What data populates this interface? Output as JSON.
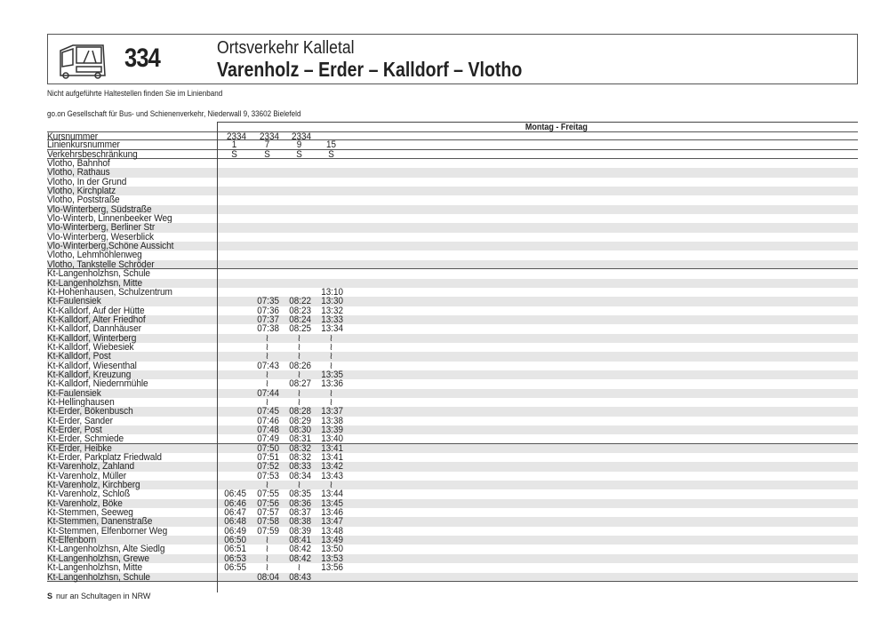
{
  "header": {
    "line_number": "334",
    "subtitle": "Ortsverkehr Kalletal",
    "title": "Varenholz – Erder – Kalldorf – Vlotho",
    "icon": "bus-icon"
  },
  "notes": {
    "stops_hint": "Nicht aufgeführte Haltestellen finden Sie im Linienband",
    "operator": "go.on Gesellschaft für Bus- und Schienenverkehr, Niederwall 9, 33602 Bielefeld"
  },
  "table": {
    "day_label": "Montag - Freitag",
    "skip_symbol": "≀",
    "header_rows": [
      {
        "label": "Kursnummer",
        "values": [
          "2334",
          "2334",
          "2334",
          ""
        ]
      },
      {
        "label": "Linienkursnummer",
        "values": [
          "1",
          "7",
          "9",
          "15"
        ]
      },
      {
        "label": "Verkehrsbeschränkung",
        "values": [
          "S",
          "S",
          "S",
          "S"
        ]
      }
    ],
    "stops": [
      {
        "name": "Vlotho, Bahnhof",
        "times": [
          "",
          "",
          "",
          ""
        ]
      },
      {
        "name": "Vlotho, Rathaus",
        "times": [
          "",
          "",
          "",
          ""
        ]
      },
      {
        "name": "Vlotho, In der Grund",
        "times": [
          "",
          "",
          "",
          ""
        ]
      },
      {
        "name": "Vlotho, Kirchplatz",
        "times": [
          "",
          "",
          "",
          ""
        ]
      },
      {
        "name": "Vlotho, Poststraße",
        "times": [
          "",
          "",
          "",
          ""
        ]
      },
      {
        "name": "Vlo-Winterberg, Südstraße",
        "times": [
          "",
          "",
          "",
          ""
        ]
      },
      {
        "name": "Vlo-Winterb, Linnenbeeker Weg",
        "times": [
          "",
          "",
          "",
          ""
        ]
      },
      {
        "name": "Vlo-Winterberg, Berliner Str",
        "times": [
          "",
          "",
          "",
          ""
        ]
      },
      {
        "name": "Vlo-Winterberg, Weserblick",
        "times": [
          "",
          "",
          "",
          ""
        ]
      },
      {
        "name": "Vlo-Winterberg,Schöne Aussicht",
        "times": [
          "",
          "",
          "",
          ""
        ]
      },
      {
        "name": "Vlotho, Lehmhöhlenweg",
        "times": [
          "",
          "",
          "",
          ""
        ]
      },
      {
        "name": "Vlotho, Tankstelle Schröder",
        "times": [
          "",
          "",
          "",
          ""
        ]
      },
      {
        "name": "Kt-Langenholzhsn, Schule",
        "times": [
          "",
          "",
          "",
          ""
        ]
      },
      {
        "name": "Kt-Langenholzhsn, Mitte",
        "times": [
          "",
          "",
          "",
          ""
        ]
      },
      {
        "name": "Kt-Hohenhausen, Schulzentrum",
        "times": [
          "",
          "",
          "",
          "13:10"
        ]
      },
      {
        "name": "Kt-Faulensiek",
        "times": [
          "",
          "07:35",
          "08:22",
          "13:30"
        ]
      },
      {
        "name": "Kt-Kalldorf, Auf der Hütte",
        "times": [
          "",
          "07:36",
          "08:23",
          "13:32"
        ]
      },
      {
        "name": "Kt-Kalldorf, Alter Friedhof",
        "times": [
          "",
          "07:37",
          "08:24",
          "13:33"
        ]
      },
      {
        "name": "Kt-Kalldorf, Dannhäuser",
        "times": [
          "",
          "07:38",
          "08:25",
          "13:34"
        ]
      },
      {
        "name": "Kt-Kalldorf, Winterberg",
        "times": [
          "",
          "≀",
          "≀",
          "≀"
        ]
      },
      {
        "name": "Kt-Kalldorf, Wiebesiek",
        "times": [
          "",
          "≀",
          "≀",
          "≀"
        ]
      },
      {
        "name": "Kt-Kalldorf, Post",
        "times": [
          "",
          "≀",
          "≀",
          "≀"
        ]
      },
      {
        "name": "Kt-Kalldorf, Wiesenthal",
        "times": [
          "",
          "07:43",
          "08:26",
          "≀"
        ]
      },
      {
        "name": "Kt-Kalldorf, Kreuzung",
        "times": [
          "",
          "≀",
          "≀",
          "13:35"
        ]
      },
      {
        "name": "Kt-Kalldorf, Niedernmühle",
        "times": [
          "",
          "≀",
          "08:27",
          "13:36"
        ]
      },
      {
        "name": "Kt-Faulensiek",
        "times": [
          "",
          "07:44",
          "≀",
          "≀"
        ]
      },
      {
        "name": "Kt-Hellinghausen",
        "times": [
          "",
          "≀",
          "≀",
          "≀"
        ]
      },
      {
        "name": "Kt-Erder, Bökenbusch",
        "times": [
          "",
          "07:45",
          "08:28",
          "13:37"
        ]
      },
      {
        "name": "Kt-Erder, Sander",
        "times": [
          "",
          "07:46",
          "08:29",
          "13:38"
        ]
      },
      {
        "name": "Kt-Erder, Post",
        "times": [
          "",
          "07:48",
          "08:30",
          "13:39"
        ]
      },
      {
        "name": "Kt-Erder, Schmiede",
        "times": [
          "",
          "07:49",
          "08:31",
          "13:40"
        ]
      },
      {
        "name": "Kt-Erder, Heibke",
        "times": [
          "",
          "07:50",
          "08:32",
          "13:41"
        ]
      },
      {
        "name": "Kt-Erder, Parkplatz Friedwald",
        "times": [
          "",
          "07:51",
          "08:32",
          "13:41"
        ]
      },
      {
        "name": "Kt-Varenholz, Zahland",
        "times": [
          "",
          "07:52",
          "08:33",
          "13:42"
        ]
      },
      {
        "name": "Kt-Varenholz, Müller",
        "times": [
          "",
          "07:53",
          "08:34",
          "13:43"
        ]
      },
      {
        "name": "Kt-Varenholz, Kirchberg",
        "times": [
          "",
          "≀",
          "≀",
          "≀"
        ]
      },
      {
        "name": "Kt-Varenholz, Schloß",
        "times": [
          "06:45",
          "07:55",
          "08:35",
          "13:44"
        ]
      },
      {
        "name": "Kt-Varenholz, Böke",
        "times": [
          "06:46",
          "07:56",
          "08:36",
          "13:45"
        ]
      },
      {
        "name": "Kt-Stemmen, Seeweg",
        "times": [
          "06:47",
          "07:57",
          "08:37",
          "13:46"
        ]
      },
      {
        "name": "Kt-Stemmen, Danenstraße",
        "times": [
          "06:48",
          "07:58",
          "08:38",
          "13:47"
        ]
      },
      {
        "name": "Kt-Stemmen, Elfenborner Weg",
        "times": [
          "06:49",
          "07:59",
          "08:39",
          "13:48"
        ]
      },
      {
        "name": "Kt-Elfenborn",
        "times": [
          "06:50",
          "≀",
          "08:41",
          "13:49"
        ]
      },
      {
        "name": "Kt-Langenholzhsn, Alte Siedlg",
        "times": [
          "06:51",
          "≀",
          "08:42",
          "13:50"
        ]
      },
      {
        "name": "Kt-Langenholzhsn, Grewe",
        "times": [
          "06:53",
          "≀",
          "08:42",
          "13:53"
        ]
      },
      {
        "name": "Kt-Langenholzhsn, Mitte",
        "times": [
          "06:55",
          "≀",
          "≀",
          "13:56"
        ]
      },
      {
        "name": "Kt-Langenholzhsn, Schule",
        "times": [
          "",
          "08:04",
          "08:43",
          ""
        ]
      }
    ]
  },
  "footnote": {
    "symbol": "S",
    "text": "nur an Schultagen in NRW"
  }
}
